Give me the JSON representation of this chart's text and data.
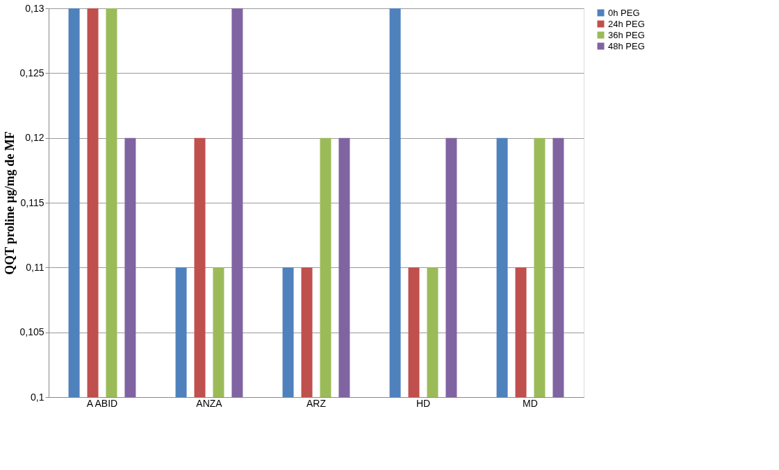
{
  "chart_data": {
    "type": "bar",
    "ylabel": "QQT proline µg/mg de MF",
    "categories": [
      "A ABID",
      "ANZA",
      "ARZ",
      "HD",
      "MD"
    ],
    "series": [
      {
        "name": "0h PEG",
        "color": "#4f81bd",
        "values": [
          0.13,
          0.11,
          0.11,
          0.13,
          0.12
        ]
      },
      {
        "name": "24h PEG",
        "color": "#c0504d",
        "values": [
          0.13,
          0.12,
          0.11,
          0.11,
          0.11
        ]
      },
      {
        "name": "36h PEG",
        "color": "#9bbb59",
        "values": [
          0.13,
          0.11,
          0.12,
          0.11,
          0.12
        ]
      },
      {
        "name": "48h PEG",
        "color": "#8064a2",
        "values": [
          0.12,
          0.13,
          0.12,
          0.12,
          0.12
        ]
      }
    ],
    "ylim": [
      0.1,
      0.13
    ],
    "yticks": [
      {
        "value": 0.1,
        "label": "0,1"
      },
      {
        "value": 0.105,
        "label": "0,105"
      },
      {
        "value": 0.11,
        "label": "0,11"
      },
      {
        "value": 0.115,
        "label": "0,115"
      },
      {
        "value": 0.12,
        "label": "0,12"
      },
      {
        "value": 0.125,
        "label": "0,125"
      },
      {
        "value": 0.13,
        "label": "0,13"
      }
    ],
    "grid": "y",
    "legend": "right"
  }
}
